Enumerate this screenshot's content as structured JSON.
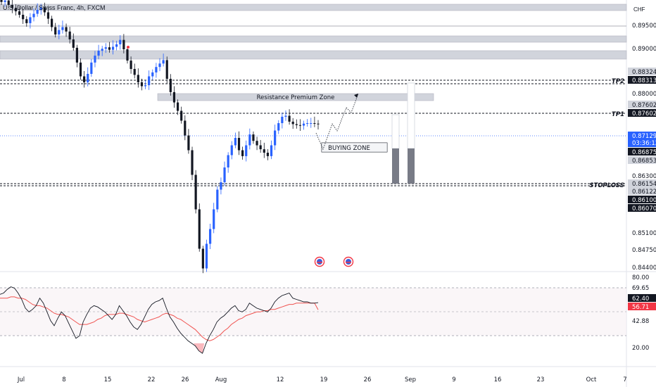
{
  "header": {
    "title": "U.S. Dollar / Swiss Franc, 4h, FXCM",
    "currency": "CHF"
  },
  "colors": {
    "up": "#2962ff",
    "down": "#131722",
    "rsi": "#131722",
    "rsi_ma": "#f05350",
    "zone": "#d1d4dc"
  },
  "chart_data": [
    {
      "type": "candlestick",
      "title": "U.S. Dollar / Swiss Franc, 4h, FXCM",
      "x_labels": [
        "Jul",
        "8",
        "15",
        "Aug",
        "22",
        "26",
        "Aug",
        "12",
        "19",
        "26",
        "Sep",
        "9",
        "16",
        "23",
        "Oct",
        "7"
      ],
      "y_ticks": [
        "0.89500",
        "0.89000",
        "0.88000",
        "0.86300",
        "0.85100",
        "0.84750",
        "0.84400"
      ],
      "ylim": [
        0.8435,
        0.8985
      ],
      "key_levels": [
        {
          "label": "TP2",
          "values": [
            "0.88324",
            "0.88313"
          ]
        },
        {
          "label": "TP1",
          "values": [
            "0.87602",
            "0.87602"
          ]
        },
        {
          "label": "STOPLOSS",
          "values": [
            "0.86154",
            "0.86122",
            "0.86100",
            "0.86070"
          ]
        }
      ],
      "price_tags": [
        "0.87129",
        "03:36:12",
        "0.86875",
        "0.86853"
      ],
      "annotations": [
        "Resistance Premium Zone",
        "BUYING ZONE"
      ],
      "close_series": [
        0.8981,
        0.8984,
        0.8975,
        0.8969,
        0.8962,
        0.8955,
        0.8946,
        0.8938,
        0.895,
        0.8957,
        0.8965,
        0.897,
        0.896,
        0.8947,
        0.893,
        0.8915,
        0.8924,
        0.893,
        0.8921,
        0.8905,
        0.8888,
        0.8858,
        0.883,
        0.8818,
        0.8835,
        0.8858,
        0.8872,
        0.8882,
        0.8886,
        0.8889,
        0.8884,
        0.889,
        0.8895,
        0.8904,
        0.8885,
        0.8862,
        0.8845,
        0.8833,
        0.8818,
        0.881,
        0.8812,
        0.883,
        0.8838,
        0.8849,
        0.8856,
        0.8863,
        0.8825,
        0.8798,
        0.8777,
        0.876,
        0.874,
        0.871,
        0.868,
        0.863,
        0.856,
        0.848,
        0.844,
        0.849,
        0.852,
        0.856,
        0.86,
        0.8615,
        0.8645,
        0.867,
        0.869,
        0.8705,
        0.868,
        0.8668,
        0.869,
        0.8712,
        0.8699,
        0.869,
        0.8682,
        0.8675,
        0.8668,
        0.869,
        0.872,
        0.8735,
        0.8748,
        0.875,
        0.8738,
        0.8733,
        0.8731,
        0.873,
        0.8734,
        0.8735,
        0.8735,
        0.8734,
        0.8733
      ],
      "rsi": {
        "y_ticks": [
          "80.00",
          "69.65",
          "62.40",
          "56.71",
          "42.88",
          "20.00"
        ],
        "ylim": [
          12,
          86
        ],
        "values": [
          69,
          70,
          73,
          75,
          74,
          70,
          65,
          58,
          55,
          57,
          60,
          66,
          62,
          55,
          48,
          44,
          50,
          55,
          52,
          46,
          40,
          34,
          36,
          47,
          53,
          58,
          60,
          59,
          57,
          55,
          52,
          49,
          53,
          60,
          56,
          52,
          47,
          43,
          41,
          45,
          51,
          57,
          61,
          63,
          64,
          66,
          58,
          51,
          47,
          42,
          38,
          35,
          32,
          30,
          28,
          24,
          22,
          30,
          36,
          41,
          47,
          50,
          52,
          55,
          58,
          60,
          56,
          55,
          57,
          62,
          60,
          58,
          57,
          56,
          55,
          58,
          63,
          66,
          68,
          69,
          70,
          66,
          65,
          64,
          63,
          63,
          62,
          62,
          62.4
        ],
        "ma_values": [
          66,
          66,
          66,
          67,
          67,
          66,
          66,
          65,
          63,
          61,
          60,
          60,
          59,
          58,
          56,
          54,
          53,
          53,
          52,
          51,
          49,
          47,
          45,
          45,
          45,
          46,
          47,
          49,
          50,
          52,
          53,
          53,
          53,
          54,
          54,
          53,
          52,
          51,
          49,
          48,
          47,
          48,
          49,
          50,
          51,
          53,
          54,
          53,
          52,
          50,
          49,
          47,
          45,
          43,
          41,
          38,
          35,
          33,
          32,
          33,
          35,
          37,
          40,
          42,
          45,
          47,
          49,
          50,
          52,
          53,
          54,
          55,
          55,
          56,
          56,
          57,
          57,
          58,
          59,
          60,
          61,
          61,
          62,
          62,
          62,
          62,
          62,
          62,
          56.71
        ]
      }
    }
  ]
}
